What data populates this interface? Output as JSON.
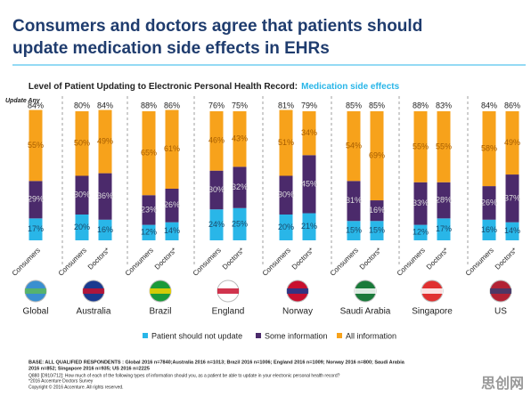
{
  "chart_data": {
    "type": "stacked_bar",
    "title": [
      "Consumers and doctors agree that patients should",
      "update medication side effects in EHRs"
    ],
    "subtitle": "Level of Patient Updating to Electronic Personal Health Record:",
    "subtitle_highlight": "Medication side effects",
    "groups": [
      {
        "name": "Global",
        "categories": [
          "Consumers"
        ]
      },
      {
        "name": "Australia",
        "categories": [
          "Consumers",
          "Doctors*"
        ]
      },
      {
        "name": "Brazil",
        "categories": [
          "Consumers",
          "Doctors*"
        ]
      },
      {
        "name": "England",
        "categories": [
          "Consumers",
          "Doctors*"
        ]
      },
      {
        "name": "Norway",
        "categories": [
          "Consumers",
          "Doctors*"
        ]
      },
      {
        "name": "Saudi Arabia",
        "categories": [
          "Consumers",
          "Doctors*"
        ]
      },
      {
        "name": "Singapore",
        "categories": [
          "Consumers",
          "Doctors*"
        ]
      },
      {
        "name": "US",
        "categories": [
          "Consumers",
          "Doctors*"
        ]
      }
    ],
    "series": [
      {
        "name": "Patient should not update",
        "color": "#29b6e8",
        "values": [
          [
            17
          ],
          [
            20,
            16
          ],
          [
            12,
            14
          ],
          [
            24,
            25
          ],
          [
            20,
            21
          ],
          [
            15,
            15
          ],
          [
            12,
            17
          ],
          [
            16,
            14
          ]
        ],
        "value_labels": [
          [
            "17%"
          ],
          [
            "20%",
            "16%"
          ],
          [
            "12%",
            "14%"
          ],
          [
            "24%",
            "25%"
          ],
          [
            "20%",
            "21%"
          ],
          [
            "15%",
            "15%"
          ],
          [
            "12%",
            "17%"
          ],
          [
            "16%",
            "14%"
          ]
        ]
      },
      {
        "name": "Some information",
        "color": "#4b2a6b",
        "values": [
          [
            29
          ],
          [
            30,
            36
          ],
          [
            23,
            26
          ],
          [
            30,
            32
          ],
          [
            30,
            45
          ],
          [
            31,
            16
          ],
          [
            33,
            28
          ],
          [
            26,
            37
          ]
        ],
        "value_labels": [
          [
            "29%"
          ],
          [
            "30%",
            "36%"
          ],
          [
            "23%",
            "26%"
          ],
          [
            "30%",
            "32%"
          ],
          [
            "30%",
            "45%"
          ],
          [
            "31%",
            "16%"
          ],
          [
            "33%",
            "28%"
          ],
          [
            "26%",
            "37%"
          ]
        ]
      },
      {
        "name": "All information",
        "color": "#f7a21b",
        "values": [
          [
            55
          ],
          [
            50,
            49
          ],
          [
            65,
            61
          ],
          [
            46,
            43
          ],
          [
            51,
            34
          ],
          [
            54,
            69
          ],
          [
            55,
            55
          ],
          [
            58,
            49
          ]
        ],
        "value_labels": [
          [
            "55%"
          ],
          [
            "50%",
            "49%"
          ],
          [
            "65%",
            "61%"
          ],
          [
            "46%",
            "43%"
          ],
          [
            "51%",
            "34%"
          ],
          [
            "54%",
            "69%"
          ],
          [
            "55%",
            "55%"
          ],
          [
            "58%",
            "49%"
          ]
        ]
      }
    ],
    "update_any": {
      "name": "Update Any",
      "values": [
        [
          84
        ],
        [
          80,
          84
        ],
        [
          88,
          86
        ],
        [
          76,
          75
        ],
        [
          81,
          79
        ],
        [
          85,
          85
        ],
        [
          88,
          83
        ],
        [
          84,
          86
        ]
      ],
      "value_labels": [
        [
          "84%"
        ],
        [
          "80%",
          "84%"
        ],
        [
          "88%",
          "86%"
        ],
        [
          "76%",
          "75%"
        ],
        [
          "81%",
          "79%"
        ],
        [
          "85%",
          "85%"
        ],
        [
          "88%",
          "83%"
        ],
        [
          "84%",
          "86%"
        ]
      ]
    },
    "footnotes": [
      "BASE: ALL QUALIFIED RESPONDENTS : Global 2016 n=7840;Australia 2016 n=1013; Brazil 2016 n=1006; England 2016 n=1009; Norway 2016 n=800; Saudi Arabia",
      "2016 n=852; Singapore 2016 n=935; US 2016 n=2225",
      "Q880 [D910/712]: How much of each of the following types of information should you, as a patient be able to update in your electronic personal health record?",
      "*2016 Accenture Doctors Survey",
      "Copyright © 2016 Accenture. All rights reserved."
    ],
    "watermark": "思创网"
  }
}
